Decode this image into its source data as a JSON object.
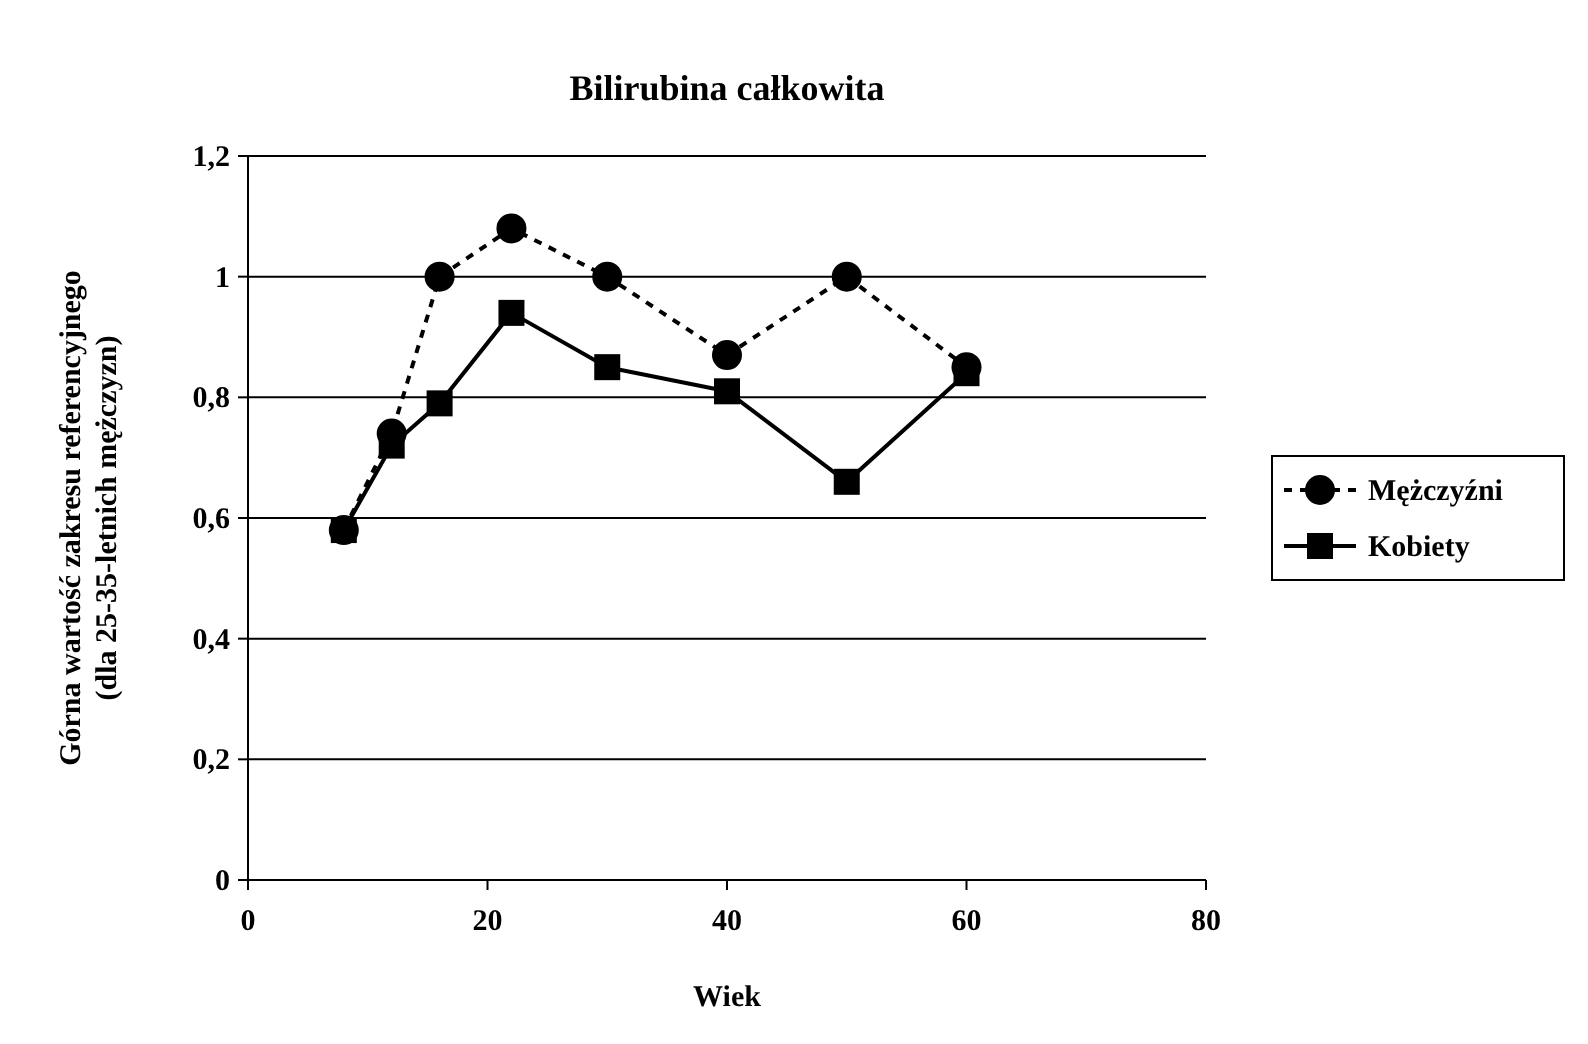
{
  "chart_data": {
    "type": "line",
    "title": "Bilirubina całkowita",
    "xlabel": "Wiek",
    "ylabel": "Górna wartość zakresu referencyjnego\n(dla 25-35-letnich mężczyzn)",
    "x": [
      8,
      12,
      16,
      22,
      30,
      40,
      50,
      60
    ],
    "series": [
      {
        "name": "Mężczyźni",
        "color": "#000000",
        "marker": "circle",
        "line_style": "dashed",
        "values": [
          0.58,
          0.74,
          1.0,
          1.08,
          1.0,
          0.87,
          1.0,
          0.85
        ]
      },
      {
        "name": "Kobiety",
        "color": "#000000",
        "marker": "square",
        "line_style": "solid",
        "values": [
          0.58,
          0.72,
          0.79,
          0.94,
          0.85,
          0.81,
          0.66,
          0.84
        ]
      }
    ],
    "xlim": [
      0,
      80
    ],
    "xticks": [
      0,
      20,
      40,
      60,
      80
    ],
    "ylim": [
      0,
      1.2
    ],
    "yticks": [
      0,
      {
        "value": 0.2,
        "label": "0,2"
      },
      {
        "value": 0.4,
        "label": "0,4"
      },
      {
        "value": 0.6,
        "label": "0,6"
      },
      {
        "value": 0.8,
        "label": "0,8"
      },
      1,
      {
        "value": 1.2,
        "label": "1,2"
      }
    ],
    "grid": "y",
    "legend": "right"
  }
}
